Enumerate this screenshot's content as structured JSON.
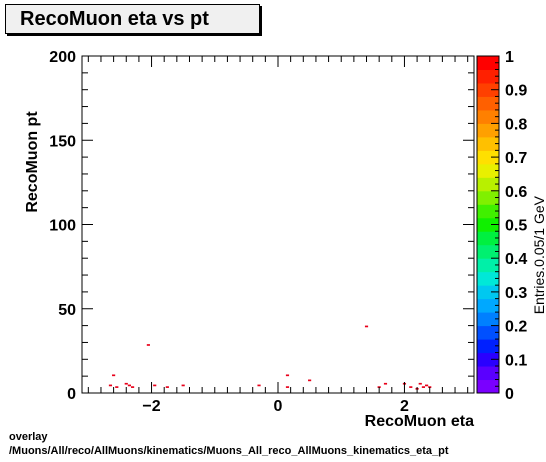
{
  "chart_data": {
    "type": "heatmap",
    "title": "RecoMuon eta vs pt",
    "xlabel": "RecoMuon eta",
    "ylabel": "RecoMuon pt",
    "zlabel": "Entries.0.05/1 GeV",
    "xlim": [
      -3.1,
      3.1
    ],
    "ylim": [
      0,
      200
    ],
    "zlim": [
      0,
      1
    ],
    "x_ticks": [
      {
        "v": -2,
        "label": "−2"
      },
      {
        "v": 0,
        "label": "0"
      },
      {
        "v": 2,
        "label": "2"
      }
    ],
    "y_ticks": [
      {
        "v": 0,
        "label": "0"
      },
      {
        "v": 50,
        "label": "50"
      },
      {
        "v": 100,
        "label": "100"
      },
      {
        "v": 150,
        "label": "150"
      },
      {
        "v": 200,
        "label": "200"
      }
    ],
    "z_ticks": [
      {
        "v": 0,
        "label": "0"
      },
      {
        "v": 0.1,
        "label": "0.1"
      },
      {
        "v": 0.2,
        "label": "0.2"
      },
      {
        "v": 0.3,
        "label": "0.3"
      },
      {
        "v": 0.4,
        "label": "0.4"
      },
      {
        "v": 0.5,
        "label": "0.5"
      },
      {
        "v": 0.6,
        "label": "0.6"
      },
      {
        "v": 0.7,
        "label": "0.7"
      },
      {
        "v": 0.8,
        "label": "0.8"
      },
      {
        "v": 0.9,
        "label": "0.9"
      },
      {
        "v": 1,
        "label": "1"
      }
    ],
    "bins": [
      {
        "eta": -2.6,
        "pt": 10,
        "z": 1
      },
      {
        "eta": -2.65,
        "pt": 4,
        "z": 1
      },
      {
        "eta": -2.55,
        "pt": 3,
        "z": 1
      },
      {
        "eta": -2.4,
        "pt": 5,
        "z": 1
      },
      {
        "eta": -2.35,
        "pt": 4,
        "z": 1
      },
      {
        "eta": -2.3,
        "pt": 3,
        "z": 1
      },
      {
        "eta": -2.05,
        "pt": 28,
        "z": 1
      },
      {
        "eta": -1.95,
        "pt": 4,
        "z": 1
      },
      {
        "eta": -1.75,
        "pt": 3,
        "z": 1
      },
      {
        "eta": -1.5,
        "pt": 4,
        "z": 1
      },
      {
        "eta": -0.3,
        "pt": 4,
        "z": 1
      },
      {
        "eta": 0.15,
        "pt": 10,
        "z": 1
      },
      {
        "eta": 0.15,
        "pt": 3,
        "z": 1
      },
      {
        "eta": 0.5,
        "pt": 7,
        "z": 1
      },
      {
        "eta": 1.4,
        "pt": 39,
        "z": 1
      },
      {
        "eta": 1.6,
        "pt": 3,
        "z": 1
      },
      {
        "eta": 1.7,
        "pt": 5,
        "z": 1
      },
      {
        "eta": 2.0,
        "pt": 5,
        "z": 1
      },
      {
        "eta": 2.1,
        "pt": 3,
        "z": 1
      },
      {
        "eta": 2.2,
        "pt": 2,
        "z": 1
      },
      {
        "eta": 2.25,
        "pt": 5,
        "z": 1
      },
      {
        "eta": 2.3,
        "pt": 3,
        "z": 1
      },
      {
        "eta": 2.35,
        "pt": 4,
        "z": 1
      },
      {
        "eta": 2.4,
        "pt": 3,
        "z": 1
      }
    ],
    "grid": false,
    "colorbar_position": "right"
  },
  "footer": {
    "line1": "overlay",
    "line2": "/Muons/All/reco/AllMuons/kinematics/Muons_All_reco_AllMuons_kinematics_eta_pt"
  }
}
